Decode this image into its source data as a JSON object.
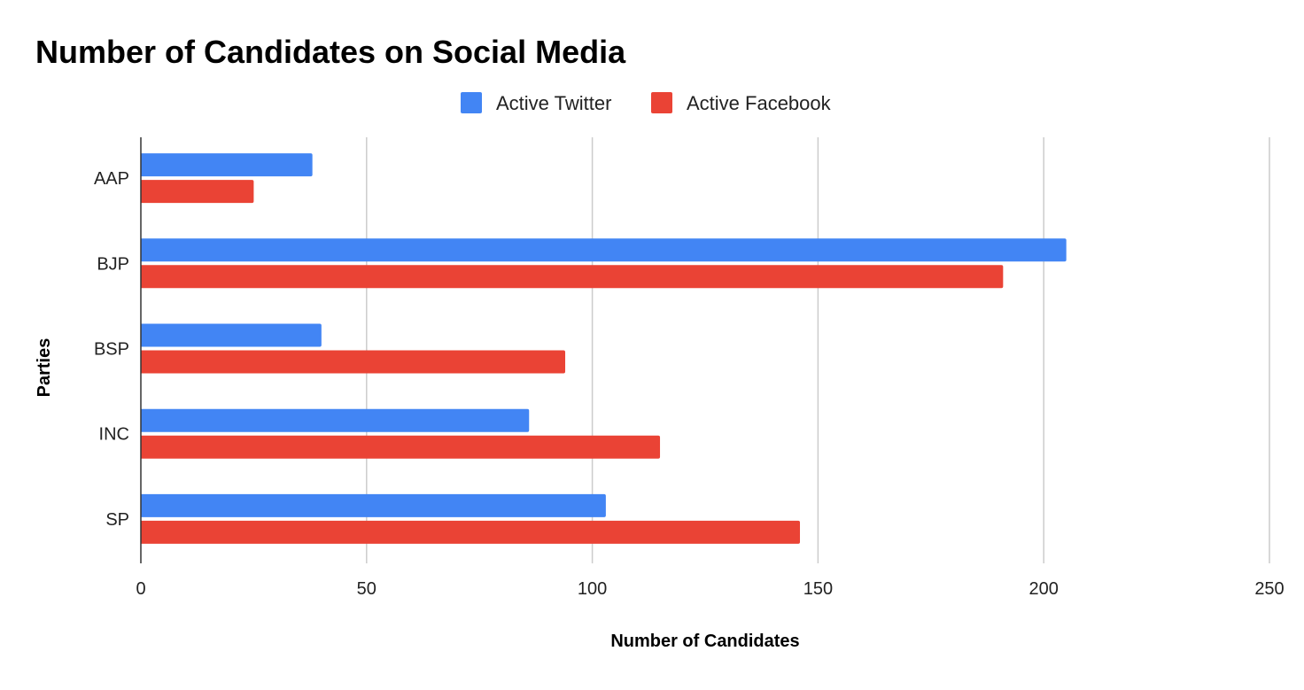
{
  "chart_data": {
    "type": "bar",
    "orientation": "horizontal",
    "title": "Number of Candidates on Social Media",
    "xlabel": "Number of Candidates",
    "ylabel": "Parties",
    "categories": [
      "AAP",
      "BJP",
      "BSP",
      "INC",
      "SP"
    ],
    "series": [
      {
        "name": "Active Twitter",
        "color": "#4285f4",
        "values": [
          38,
          205,
          40,
          86,
          103
        ]
      },
      {
        "name": "Active Facebook",
        "color": "#ea4335",
        "values": [
          25,
          191,
          94,
          115,
          146
        ]
      }
    ],
    "xlim": [
      0,
      250
    ],
    "xticks": [
      "0",
      "50",
      "100",
      "150",
      "200",
      "250"
    ],
    "grid": true,
    "legend_position": "top"
  }
}
